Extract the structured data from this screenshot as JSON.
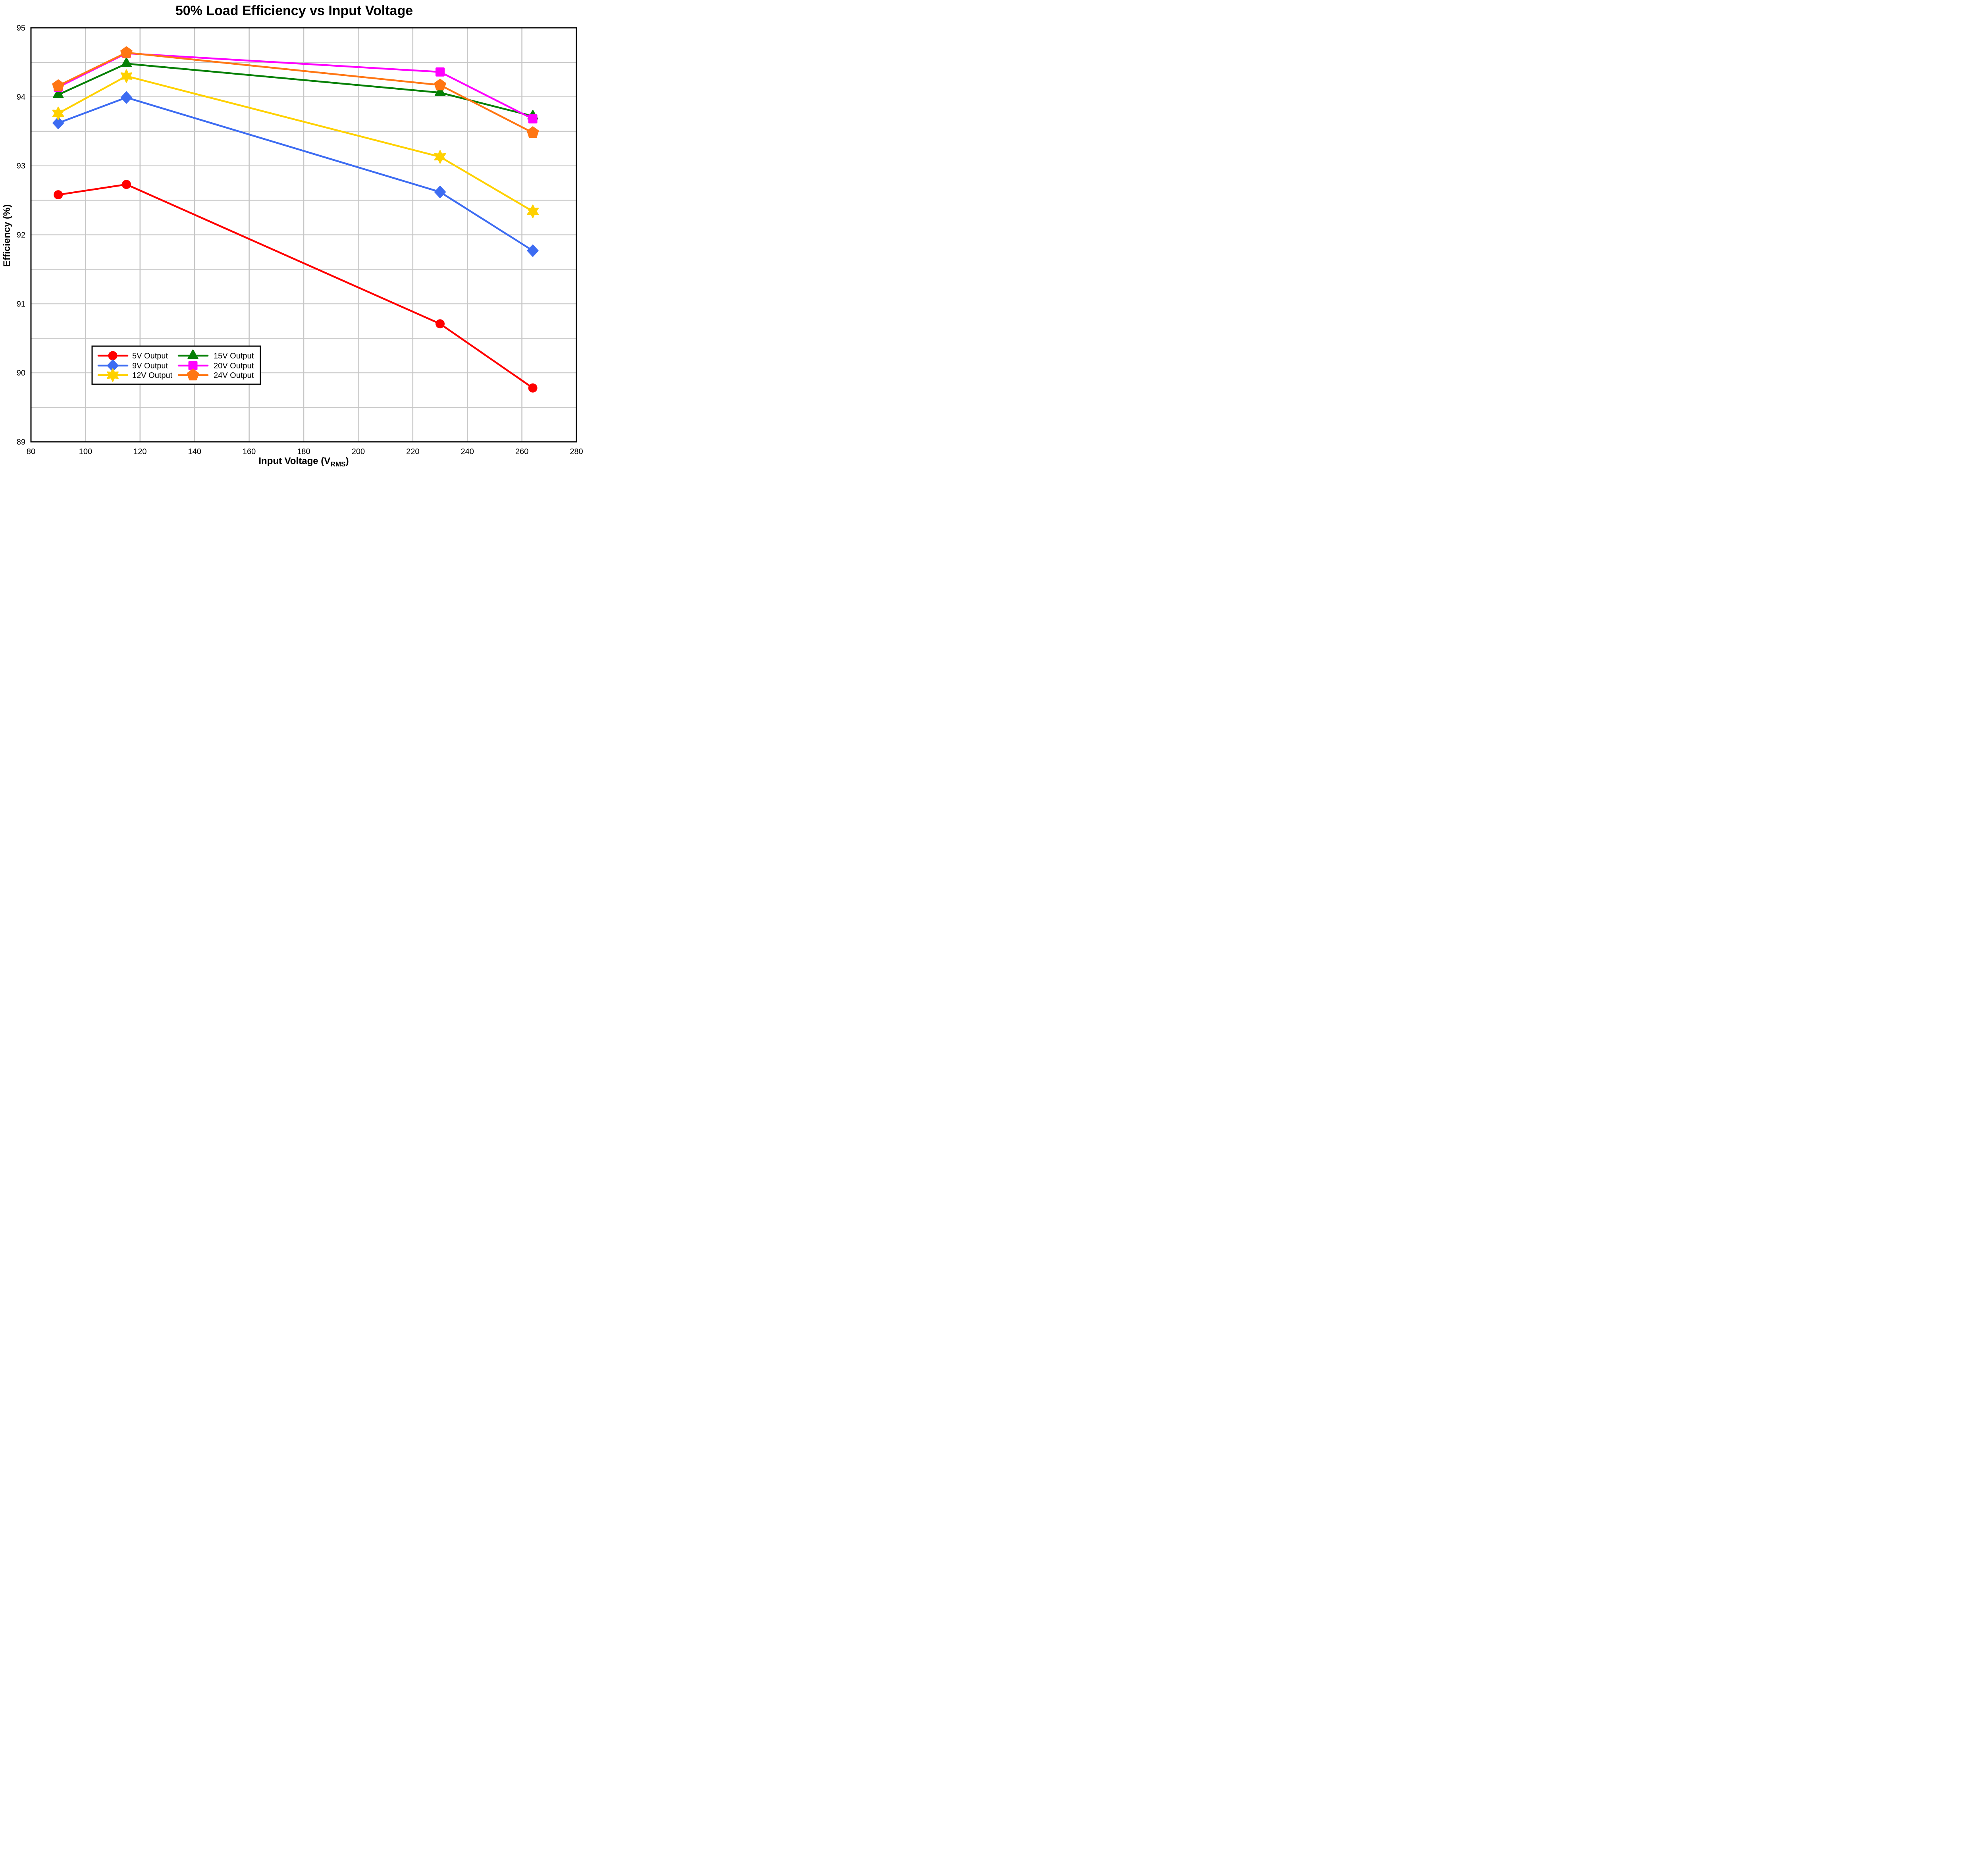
{
  "title": "50% Load Efficiency vs Input Voltage",
  "axes": {
    "x_label_main": "Input Voltage (V",
    "x_label_sub": "RMS",
    "x_label_end": ")",
    "y_label": "Efficiency (%)",
    "x_ticks": [
      80,
      100,
      120,
      140,
      160,
      180,
      200,
      220,
      240,
      260,
      280
    ],
    "y_ticks": [
      89,
      90,
      91,
      92,
      93,
      94,
      95
    ]
  },
  "style": {
    "grid_color": "#C6C6C6",
    "spine_color": "#000000",
    "background": "#FFFFFF"
  },
  "chart_data": {
    "type": "line",
    "title": "50% Load Efficiency vs Input Voltage",
    "xlabel": "Input Voltage (VRMS)",
    "ylabel": "Efficiency (%)",
    "xlim": [
      80,
      280
    ],
    "ylim": [
      89,
      95
    ],
    "grid": {
      "x_step": 20,
      "y_step": 0.5,
      "on": true
    },
    "legend_position": "lower-left",
    "legend_columns": 2,
    "x": [
      90,
      115,
      230,
      264
    ],
    "series": [
      {
        "name": "5V Output",
        "color": "#FF0000",
        "marker": "circle",
        "values": [
          92.58,
          92.73,
          90.71,
          89.78
        ]
      },
      {
        "name": "9V Output",
        "color": "#3D6CF2",
        "marker": "diamond",
        "values": [
          93.62,
          93.99,
          92.62,
          91.77
        ]
      },
      {
        "name": "12V Output",
        "color": "#FFD100",
        "marker": "star6",
        "values": [
          93.76,
          94.3,
          93.13,
          92.34
        ]
      },
      {
        "name": "15V Output",
        "color": "#068006",
        "marker": "triangle",
        "values": [
          94.03,
          94.48,
          94.06,
          93.72
        ]
      },
      {
        "name": "20V Output",
        "color": "#FF00FF",
        "marker": "square",
        "values": [
          94.14,
          94.63,
          94.36,
          93.68
        ]
      },
      {
        "name": "24V Output",
        "color": "#FF7613",
        "marker": "pentagon",
        "values": [
          94.16,
          94.64,
          94.17,
          93.48
        ]
      }
    ]
  }
}
